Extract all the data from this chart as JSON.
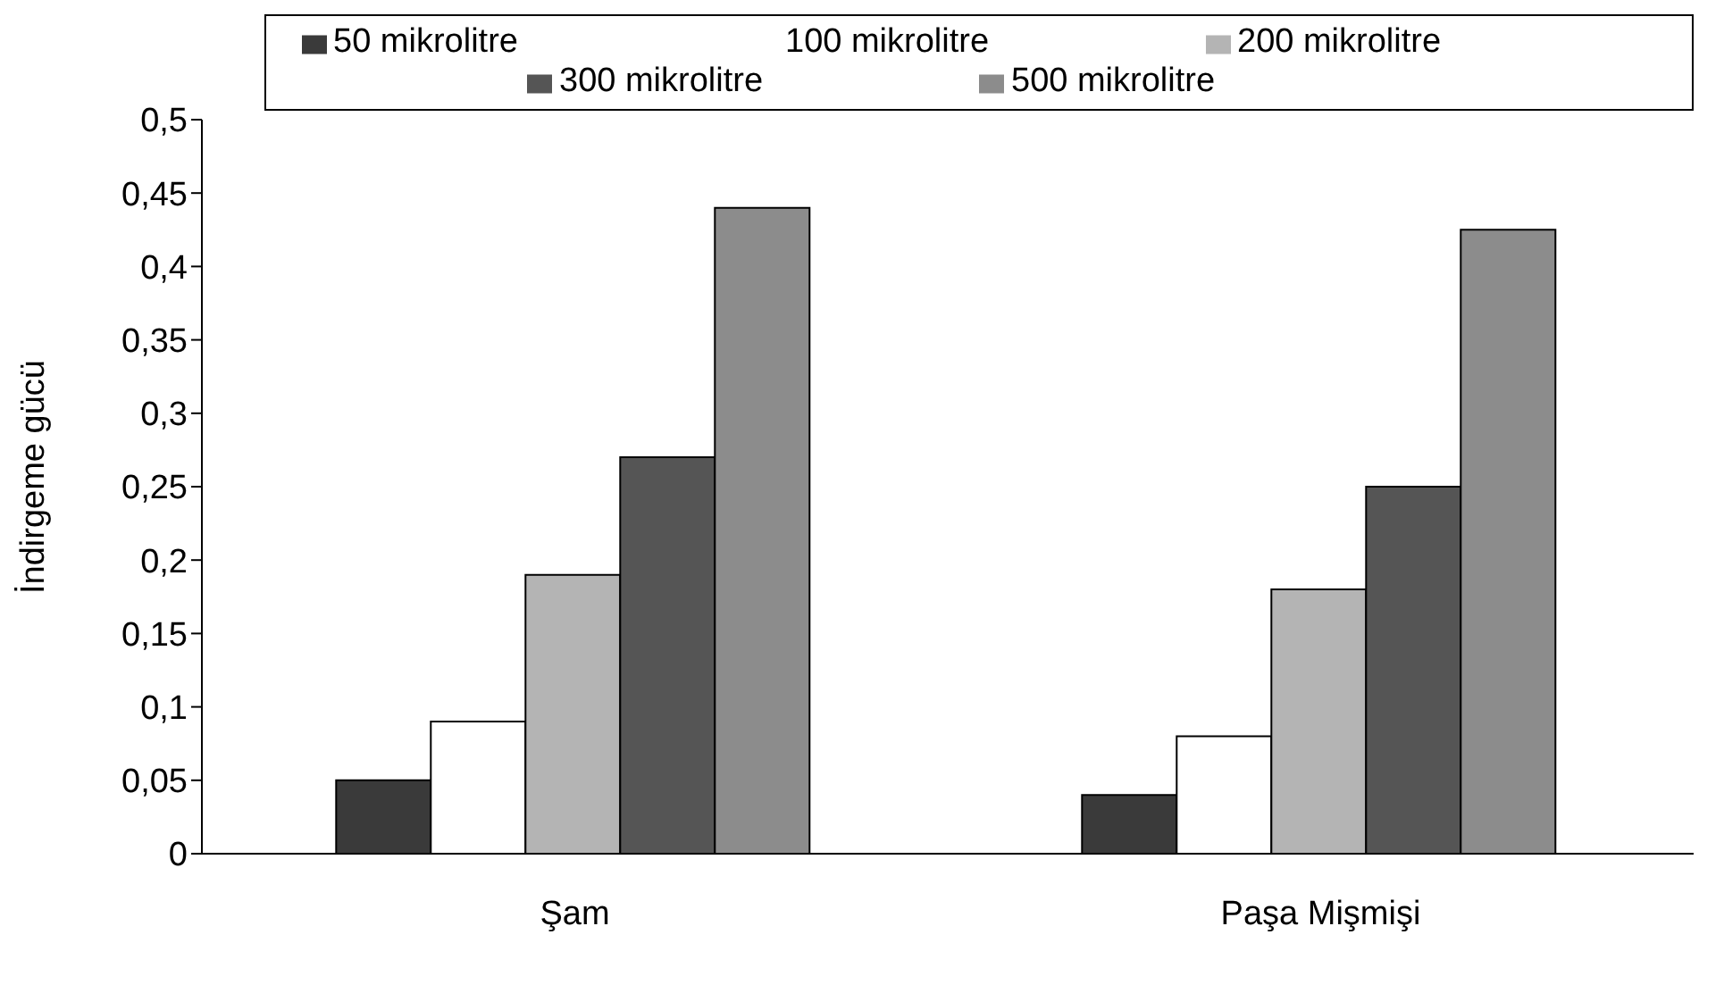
{
  "chart_data": {
    "type": "bar",
    "ylabel": "İndirgeme gücü",
    "categories": [
      "Şam",
      "Paşa Mişmişi"
    ],
    "series": [
      {
        "name": "50 mikrolitre",
        "color": "#3a3a3a",
        "values": [
          0.05,
          0.04
        ]
      },
      {
        "name": "100 mikrolitre",
        "color": "#ffffff",
        "values": [
          0.09,
          0.08
        ]
      },
      {
        "name": "200 mikrolitre",
        "color": "#b4b4b4",
        "values": [
          0.19,
          0.18
        ]
      },
      {
        "name": "300 mikrolitre",
        "color": "#555555",
        "values": [
          0.27,
          0.25
        ]
      },
      {
        "name": "500 mikrolitre",
        "color": "#8c8c8c",
        "values": [
          0.44,
          0.425
        ]
      }
    ],
    "ylim": [
      0,
      0.5
    ],
    "yticks": [
      0,
      {
        "value": 0.05,
        "label": "0,05"
      },
      {
        "value": 0.1,
        "label": "0,1"
      },
      {
        "value": 0.15,
        "label": "0,15"
      },
      {
        "value": 0.2,
        "label": "0,2"
      },
      {
        "value": 0.25,
        "label": "0,25"
      },
      {
        "value": 0.3,
        "label": "0,3"
      },
      {
        "value": 0.35,
        "label": "0,35"
      },
      {
        "value": 0.4,
        "label": "0,4"
      },
      {
        "value": 0.45,
        "label": "0,45"
      },
      {
        "value": 0.5,
        "label": "0,5"
      }
    ],
    "grid": false,
    "legend": "top"
  }
}
